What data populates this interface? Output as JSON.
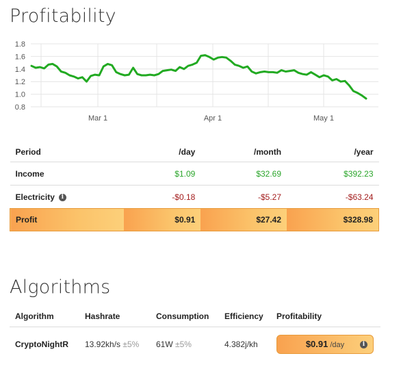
{
  "profitability": {
    "title": "Profitability"
  },
  "chart_data": {
    "type": "line",
    "x_tick_labels": [
      "Mar 1",
      "Apr 1",
      "May 1"
    ],
    "y_tick_labels": [
      "0.8",
      "1.0",
      "1.2",
      "1.4",
      "1.6",
      "1.8"
    ],
    "ylim": [
      0.8,
      1.8
    ],
    "grid": true,
    "series": [
      {
        "color": "#22aa22",
        "values": [
          1.45,
          1.42,
          1.43,
          1.41,
          1.47,
          1.48,
          1.44,
          1.36,
          1.34,
          1.3,
          1.28,
          1.25,
          1.27,
          1.2,
          1.29,
          1.31,
          1.3,
          1.44,
          1.48,
          1.46,
          1.35,
          1.32,
          1.3,
          1.31,
          1.42,
          1.32,
          1.3,
          1.3,
          1.31,
          1.3,
          1.32,
          1.37,
          1.38,
          1.39,
          1.37,
          1.43,
          1.4,
          1.45,
          1.47,
          1.5,
          1.61,
          1.62,
          1.59,
          1.55,
          1.58,
          1.59,
          1.58,
          1.53,
          1.47,
          1.45,
          1.42,
          1.44,
          1.36,
          1.33,
          1.35,
          1.36,
          1.35,
          1.35,
          1.34,
          1.38,
          1.36,
          1.37,
          1.38,
          1.34,
          1.32,
          1.31,
          1.35,
          1.31,
          1.27,
          1.3,
          1.28,
          1.22,
          1.24,
          1.2,
          1.21,
          1.14,
          1.05,
          1.02,
          0.98,
          0.93
        ]
      }
    ]
  },
  "table": {
    "headers": [
      "Period",
      "/day",
      "/month",
      "/year"
    ],
    "rows": [
      {
        "label": "Income",
        "day": "$1.09",
        "month": "$32.69",
        "year": "$392.23"
      },
      {
        "label": "Electricity",
        "day": "-$0.18",
        "month": "-$5.27",
        "year": "-$63.24"
      },
      {
        "label": "Profit",
        "day": "$0.91",
        "month": "$27.42",
        "year": "$328.98"
      }
    ],
    "info_icon": "i"
  },
  "algorithms": {
    "title": "Algorithms",
    "headers": [
      "Algorithm",
      "Hashrate",
      "Consumption",
      "Efficiency",
      "Profitability"
    ],
    "row": {
      "algorithm": "CryptoNightR",
      "hashrate": "13.92kh/s",
      "hashrate_tolerance": "±5%",
      "consumption": "61W",
      "consumption_tolerance": "±5%",
      "efficiency": "4.382j/kh",
      "profit_value": "$0.91",
      "profit_unit": "/day"
    }
  }
}
